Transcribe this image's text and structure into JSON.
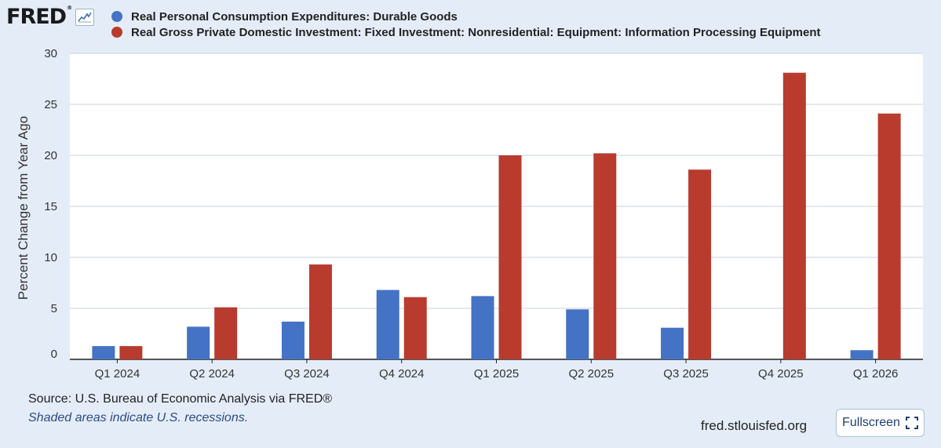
{
  "logo": {
    "text": "FRED",
    "reg": "®"
  },
  "colors": {
    "series1": "#4472c4",
    "series2": "#b83b2e",
    "grid": "#c9d2dc",
    "background": "#ffffff"
  },
  "footer": {
    "source": "Source: U.S. Bureau of Economic Analysis via FRED®",
    "note": "Shaded areas indicate U.S. recessions.",
    "site": "fred.stlouisfed.org",
    "fullscreen_label": "Fullscreen"
  },
  "icons": {
    "logo": "line-chart-icon",
    "fullscreen": "expand-icon"
  },
  "chart_data": {
    "type": "bar",
    "title": "",
    "xlabel": "",
    "ylabel": "Percent Change from Year Ago",
    "ylim": [
      0,
      30
    ],
    "yticks": [
      0,
      5,
      10,
      15,
      20,
      25,
      30
    ],
    "grid": true,
    "legend": "top-left",
    "categories": [
      "Q1 2024",
      "Q2 2024",
      "Q3 2024",
      "Q4 2024",
      "Q1 2025",
      "Q2 2025",
      "Q3 2025",
      "Q4 2025",
      "Q1 2026"
    ],
    "series": [
      {
        "name": "Real Personal Consumption Expenditures: Durable Goods",
        "values": [
          1.3,
          3.2,
          3.7,
          6.8,
          6.2,
          4.9,
          3.1,
          null,
          0.9
        ]
      },
      {
        "name": "Real Gross Private Domestic Investment: Fixed Investment: Nonresidential: Equipment: Information Processing Equipment",
        "values": [
          1.3,
          5.1,
          9.3,
          6.1,
          20.0,
          20.2,
          18.6,
          28.1,
          24.1
        ]
      }
    ]
  }
}
